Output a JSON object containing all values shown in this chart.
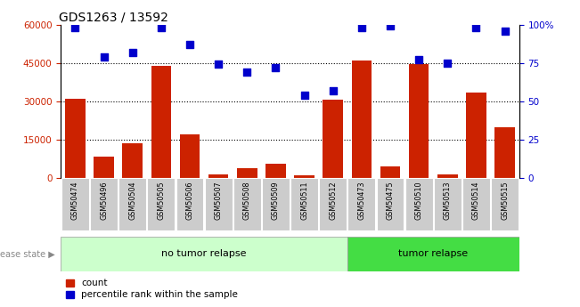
{
  "title": "GDS1263 / 13592",
  "categories": [
    "GSM50474",
    "GSM50496",
    "GSM50504",
    "GSM50505",
    "GSM50506",
    "GSM50507",
    "GSM50508",
    "GSM50509",
    "GSM50511",
    "GSM50512",
    "GSM50473",
    "GSM50475",
    "GSM50510",
    "GSM50513",
    "GSM50514",
    "GSM50515"
  ],
  "count_values": [
    31000,
    8500,
    13500,
    44000,
    17000,
    1500,
    4000,
    5500,
    1000,
    30500,
    46000,
    4500,
    44500,
    1500,
    33500,
    20000
  ],
  "percentile_values": [
    98,
    79,
    82,
    98,
    87,
    74,
    69,
    72,
    54,
    57,
    98,
    99,
    77,
    75,
    98,
    96
  ],
  "no_tumor_count": 10,
  "tumor_count": 6,
  "bar_color": "#cc2200",
  "dot_color": "#0000cc",
  "bg_color_no_tumor": "#ccffcc",
  "bg_color_tumor": "#44dd44",
  "tick_label_bg": "#cccccc",
  "ylim_left": [
    0,
    60000
  ],
  "ylim_right": [
    0,
    100
  ],
  "yticks_left": [
    0,
    15000,
    30000,
    45000,
    60000
  ],
  "yticks_left_labels": [
    "0",
    "15000",
    "30000",
    "45000",
    "60000"
  ],
  "yticks_right": [
    0,
    25,
    50,
    75,
    100
  ],
  "yticks_right_labels": [
    "0",
    "25",
    "50",
    "75",
    "100%"
  ],
  "legend_count_label": "count",
  "legend_pct_label": "percentile rank within the sample",
  "disease_state_label": "disease state",
  "no_tumor_label": "no tumor relapse",
  "tumor_label": "tumor relapse"
}
